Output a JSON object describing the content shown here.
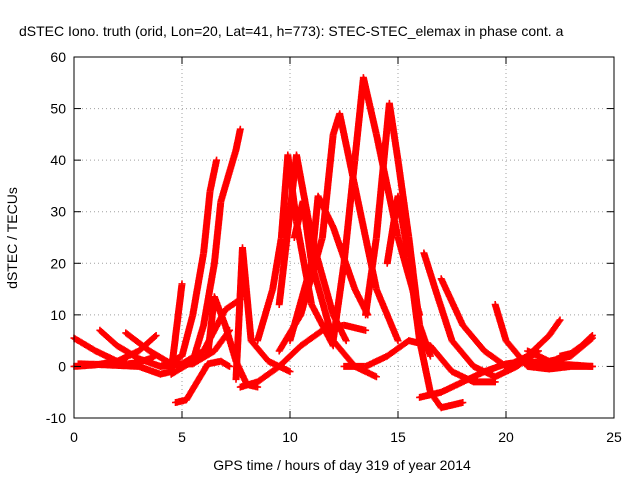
{
  "chart_data": {
    "type": "scatter",
    "title": "dSTEC Iono. truth (orid, Lon=20, Lat=41, h=773): STEC-STEC_elemax in phase cont. a",
    "xlabel": "GPS time / hours of day 319 of year 2014",
    "ylabel": "dSTEC  / TECUs",
    "xlim": [
      0,
      25
    ],
    "ylim": [
      -10,
      60
    ],
    "xticks": [
      0,
      5,
      10,
      15,
      20,
      25
    ],
    "yticks": [
      -10,
      0,
      10,
      20,
      30,
      40,
      50,
      60
    ],
    "grid": true,
    "marker": "+",
    "marker_color": "#ff0000",
    "series": [
      {
        "x": [
          0,
          1,
          2,
          2.5,
          3,
          3.5,
          3.8
        ],
        "y": [
          5.5,
          3,
          1,
          0.5,
          0.8,
          1.5,
          2.2
        ]
      },
      {
        "x": [
          1.2,
          2,
          3,
          4,
          5,
          6,
          7,
          7.7
        ],
        "y": [
          7,
          4,
          1.5,
          0,
          0.5,
          3,
          11,
          13
        ]
      },
      {
        "x": [
          2.4,
          3.5,
          4.5,
          5.5,
          6.5,
          7.2
        ],
        "y": [
          6.5,
          3,
          0.5,
          0.5,
          3,
          7
        ]
      },
      {
        "x": [
          3.8,
          3,
          2,
          1,
          0
        ],
        "y": [
          6,
          3,
          1,
          0.3,
          0
        ]
      },
      {
        "x": [
          0.2,
          1,
          2,
          3,
          4,
          4.5,
          5
        ],
        "y": [
          0.5,
          0.4,
          0.2,
          0,
          -1.5,
          -1,
          16
        ]
      },
      {
        "x": [
          4,
          5,
          5.5,
          6,
          6.3,
          6.6
        ],
        "y": [
          0,
          2,
          10,
          22,
          34,
          40
        ]
      },
      {
        "x": [
          4.5,
          5.5,
          6,
          6.5,
          6.8,
          7.5,
          7.7
        ],
        "y": [
          -1.5,
          1,
          8,
          20,
          32,
          42,
          46
        ]
      },
      {
        "x": [
          4.7,
          5.2,
          5.7,
          6.2,
          6.8,
          7.2
        ],
        "y": [
          -7,
          -6.5,
          -3,
          0.5,
          1,
          0
        ]
      },
      {
        "x": [
          6.2,
          6.5,
          7,
          7.5,
          8,
          8.5
        ],
        "y": [
          2.5,
          13.5,
          8,
          1,
          -3.5,
          -4
        ]
      },
      {
        "x": [
          7.5,
          7.8,
          8.2,
          9,
          10
        ],
        "y": [
          -2.5,
          23,
          5,
          1,
          -1
        ]
      },
      {
        "x": [
          7.7,
          8.5,
          9.5,
          10.5,
          11.5,
          12.5,
          13.5
        ],
        "y": [
          -4,
          -3,
          0,
          4,
          7,
          8,
          7
        ]
      },
      {
        "x": [
          8.5,
          9.2,
          9.6,
          9.9,
          10.3,
          11,
          12
        ],
        "y": [
          5,
          15,
          25,
          41,
          28,
          12,
          4
        ]
      },
      {
        "x": [
          9.5,
          10,
          10.3,
          11,
          12,
          12.6
        ],
        "y": [
          12,
          30,
          41,
          25,
          10,
          5
        ]
      },
      {
        "x": [
          10.2,
          10.6,
          11,
          12,
          13,
          14
        ],
        "y": [
          25,
          32,
          20,
          5,
          0,
          -2
        ]
      },
      {
        "x": [
          10,
          11,
          11.3,
          12,
          13,
          13.6
        ],
        "y": [
          5,
          20,
          33,
          27,
          15,
          10
        ]
      },
      {
        "x": [
          9.5,
          10.5,
          11.5,
          12,
          12.3,
          13,
          14,
          15
        ],
        "y": [
          3,
          10,
          25,
          45,
          49,
          35,
          15,
          5
        ]
      },
      {
        "x": [
          12,
          12.5,
          13,
          13.4,
          14,
          15,
          16
        ],
        "y": [
          5,
          20,
          40,
          56,
          45,
          25,
          10
        ]
      },
      {
        "x": [
          13.5,
          14,
          14.6,
          15,
          15.5,
          16,
          16.5
        ],
        "y": [
          10,
          25,
          51,
          40,
          25,
          8,
          2
        ]
      },
      {
        "x": [
          14.5,
          15,
          15.5,
          16,
          16.5,
          17,
          18
        ],
        "y": [
          20,
          33,
          21,
          5,
          -5,
          -8,
          -7
        ]
      },
      {
        "x": [
          12.5,
          13.5,
          14.5,
          15.5,
          16.5,
          17.5,
          18.5,
          19.5
        ],
        "y": [
          0,
          0,
          2,
          5,
          4,
          -1,
          -3,
          -3
        ]
      },
      {
        "x": [
          16.2,
          16.8,
          17.5,
          18.5,
          19.5,
          20.5,
          21.5
        ],
        "y": [
          22,
          14,
          5,
          0,
          -2,
          0,
          3
        ]
      },
      {
        "x": [
          17,
          18,
          19,
          20,
          21,
          22,
          22.5
        ],
        "y": [
          17,
          8,
          3,
          0,
          2,
          6,
          9
        ]
      },
      {
        "x": [
          19.5,
          20,
          21,
          22,
          23,
          24
        ],
        "y": [
          12,
          5,
          0,
          -0.5,
          0,
          0
        ]
      },
      {
        "x": [
          16,
          17,
          18,
          19,
          20,
          21,
          22,
          23,
          24
        ],
        "y": [
          -6,
          -5,
          -3,
          -1,
          0.5,
          1,
          0.5,
          0.3,
          0
        ]
      },
      {
        "x": [
          21,
          22,
          23,
          24
        ],
        "y": [
          3,
          1,
          2,
          5.5
        ]
      },
      {
        "x": [
          22.5,
          23,
          23.5,
          24
        ],
        "y": [
          2,
          2.5,
          4,
          6
        ]
      }
    ]
  }
}
